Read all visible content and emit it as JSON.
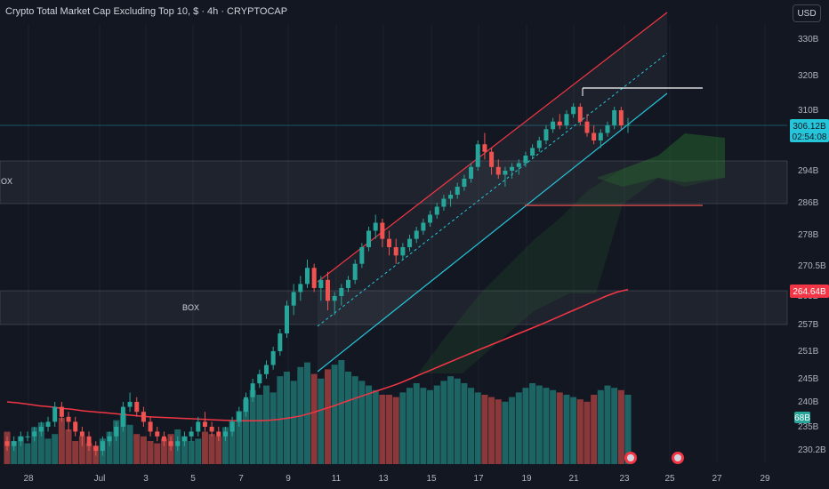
{
  "header": {
    "title": "Crypto Total Market Cap Excluding Top 10, $ · 4h · CRYPTOCAP"
  },
  "currency": "USD",
  "price_tags": {
    "last_price": "306.12B",
    "countdown": "02:54:08",
    "ma_value": "264.64B",
    "volume": "68B"
  },
  "boxes": [
    {
      "label": "OX"
    },
    {
      "label": "BOX"
    }
  ],
  "colors": {
    "background": "#131722",
    "up": "#26a69a",
    "down": "#ef5350",
    "channel_top": "#f23645",
    "channel_bottom": "#26c6da",
    "ma": "#f23645",
    "cloud": "#2e7d32"
  },
  "chart_data": {
    "type": "candlestick",
    "title": "Crypto Total Market Cap Excluding Top 10, $ · 4h · CRYPTOCAP",
    "y_unit": "USD (billions)",
    "y_ticks": [
      "330B",
      "320B",
      "310B",
      "294B",
      "286B",
      "278B",
      "270.5B",
      "263B",
      "257B",
      "251B",
      "245B",
      "240B",
      "235B",
      "230.2B"
    ],
    "x_ticks": [
      "28",
      "Jul",
      "3",
      "5",
      "7",
      "9",
      "11",
      "13",
      "15",
      "17",
      "19",
      "21",
      "23",
      "25",
      "27",
      "29"
    ],
    "last_price": 306.12,
    "moving_average_last": 264.64,
    "horizontal_levels": [
      314.5,
      286.3
    ],
    "series": [
      {
        "name": "price",
        "kind": "ohlc",
        "values": [
          [
            232,
            233,
            230,
            231
          ],
          [
            231,
            233,
            230,
            232
          ],
          [
            232,
            234,
            231,
            233
          ],
          [
            233,
            234,
            232,
            233
          ],
          [
            233,
            235,
            232,
            234
          ],
          [
            234,
            236,
            233,
            235
          ],
          [
            235,
            237,
            234,
            236
          ],
          [
            236,
            240,
            235,
            239
          ],
          [
            239,
            240,
            236,
            237
          ],
          [
            237,
            238,
            234,
            236
          ],
          [
            236,
            237,
            233,
            234
          ],
          [
            234,
            235,
            231,
            233
          ],
          [
            233,
            234,
            230,
            231
          ],
          [
            231,
            232,
            229,
            230
          ],
          [
            230,
            233,
            229,
            232
          ],
          [
            232,
            234,
            231,
            233
          ],
          [
            233,
            236,
            232,
            235
          ],
          [
            235,
            240,
            234,
            239
          ],
          [
            239,
            242,
            238,
            240
          ],
          [
            240,
            241,
            237,
            238
          ],
          [
            238,
            239,
            235,
            236
          ],
          [
            236,
            237,
            233,
            234
          ],
          [
            234,
            235,
            232,
            233
          ],
          [
            233,
            234,
            231,
            232
          ],
          [
            232,
            233,
            230,
            231
          ],
          [
            231,
            233,
            230,
            232
          ],
          [
            232,
            234,
            231,
            233
          ],
          [
            233,
            235,
            232,
            234
          ],
          [
            234,
            237,
            233,
            236
          ],
          [
            236,
            238,
            234,
            235
          ],
          [
            235,
            236,
            233,
            234
          ],
          [
            234,
            235,
            232,
            233
          ],
          [
            233,
            235,
            232,
            234
          ],
          [
            234,
            237,
            233,
            236
          ],
          [
            236,
            239,
            235,
            238
          ],
          [
            238,
            242,
            237,
            241
          ],
          [
            241,
            245,
            240,
            244
          ],
          [
            244,
            247,
            243,
            246
          ],
          [
            246,
            249,
            245,
            248
          ],
          [
            248,
            252,
            247,
            251
          ],
          [
            251,
            256,
            250,
            255
          ],
          [
            255,
            262,
            254,
            261
          ],
          [
            261,
            266,
            259,
            264
          ],
          [
            264,
            268,
            262,
            266
          ],
          [
            266,
            272,
            265,
            270
          ],
          [
            270,
            271,
            264,
            265
          ],
          [
            265,
            268,
            262,
            267
          ],
          [
            267,
            269,
            260,
            262
          ],
          [
            262,
            264,
            259,
            263
          ],
          [
            263,
            266,
            261,
            265
          ],
          [
            265,
            268,
            264,
            267
          ],
          [
            267,
            272,
            266,
            271
          ],
          [
            271,
            276,
            270,
            275
          ],
          [
            275,
            280,
            274,
            279
          ],
          [
            279,
            283,
            277,
            281
          ],
          [
            281,
            282,
            275,
            277
          ],
          [
            277,
            279,
            273,
            275
          ],
          [
            275,
            277,
            271,
            273
          ],
          [
            273,
            276,
            272,
            275
          ],
          [
            275,
            278,
            274,
            277
          ],
          [
            277,
            280,
            276,
            279
          ],
          [
            279,
            282,
            278,
            281
          ],
          [
            281,
            284,
            280,
            283
          ],
          [
            283,
            286,
            282,
            285
          ],
          [
            285,
            288,
            284,
            287
          ],
          [
            287,
            289,
            285,
            288
          ],
          [
            288,
            291,
            287,
            290
          ],
          [
            290,
            293,
            289,
            292
          ],
          [
            292,
            296,
            291,
            295
          ],
          [
            295,
            302,
            294,
            301
          ],
          [
            301,
            304,
            297,
            299
          ],
          [
            299,
            300,
            293,
            295
          ],
          [
            295,
            297,
            292,
            293
          ],
          [
            293,
            295,
            290,
            294
          ],
          [
            294,
            296,
            292,
            295
          ],
          [
            295,
            297,
            293,
            296
          ],
          [
            296,
            299,
            295,
            298
          ],
          [
            298,
            301,
            297,
            300
          ],
          [
            300,
            303,
            299,
            302
          ],
          [
            302,
            306,
            301,
            305
          ],
          [
            305,
            308,
            304,
            307
          ],
          [
            307,
            309,
            305,
            306
          ],
          [
            306,
            310,
            305,
            309
          ],
          [
            309,
            312,
            308,
            311
          ],
          [
            311,
            312,
            306,
            307
          ],
          [
            307,
            309,
            303,
            304
          ],
          [
            304,
            306,
            301,
            302
          ],
          [
            302,
            305,
            300,
            304
          ],
          [
            304,
            307,
            303,
            306
          ],
          [
            306,
            311,
            305,
            310
          ],
          [
            310,
            311,
            305,
            306
          ],
          [
            306,
            308,
            304,
            306.12
          ]
        ]
      },
      {
        "name": "volume",
        "kind": "bar",
        "values": [
          14,
          10,
          12,
          9,
          16,
          18,
          11,
          13,
          20,
          15,
          10,
          12,
          9,
          8,
          11,
          14,
          19,
          22,
          17,
          13,
          12,
          10,
          9,
          11,
          13,
          15,
          12,
          10,
          11,
          14,
          13,
          12,
          16,
          19,
          23,
          28,
          32,
          30,
          34,
          31,
          38,
          40,
          36,
          42,
          44,
          39,
          37,
          41,
          43,
          45,
          40,
          38,
          36,
          34,
          32,
          30,
          30,
          29,
          31,
          33,
          35,
          33,
          32,
          34,
          36,
          38,
          37,
          35,
          33,
          31,
          30,
          29,
          28,
          27,
          29,
          31,
          33,
          35,
          34,
          33,
          32,
          31,
          30,
          29,
          28,
          27,
          30,
          32,
          34,
          33,
          32,
          30
        ]
      },
      {
        "name": "moving_average",
        "kind": "line",
        "values": [
          240,
          239.8,
          239.5,
          239.2,
          239,
          238.7,
          238.5,
          238.2,
          238,
          237.8,
          237.6,
          237.4,
          237.2,
          237,
          236.9,
          236.8,
          236.7,
          236.6,
          236.5,
          236.4,
          236.3,
          236.2,
          236.2,
          236.2,
          236.3,
          236.5,
          236.8,
          237.2,
          237.8,
          238.5,
          239.2,
          240,
          240.8,
          241.6,
          242.4,
          243.2,
          244,
          245,
          246,
          247,
          248,
          249,
          250,
          251,
          252,
          253,
          254,
          255,
          256,
          257,
          258,
          259,
          260,
          261,
          262,
          263,
          264,
          264.64
        ]
      }
    ]
  }
}
